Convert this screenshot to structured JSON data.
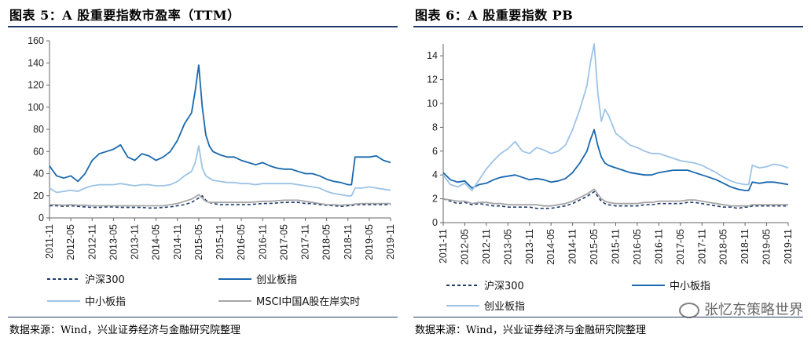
{
  "left": {
    "title": "图表 5：A 股重要指数市盈率（TTM）",
    "source": "数据来源：Wind，兴业证券经济与金融研究院整理",
    "chart_data": {
      "type": "line",
      "title": "图表 5：A 股重要指数市盈率（TTM）",
      "xlabel": "",
      "ylabel": "",
      "ylim": [
        0,
        160
      ],
      "yticks": [
        0,
        20,
        40,
        60,
        80,
        100,
        120,
        140,
        160
      ],
      "xlim": [
        0,
        96
      ],
      "xticks": [
        "2011-11",
        "2012-05",
        "2012-11",
        "2013-05",
        "2013-11",
        "2014-05",
        "2014-11",
        "2015-05",
        "2015-11",
        "2016-05",
        "2016-11",
        "2017-05",
        "2017-11",
        "2018-05",
        "2018-11",
        "2019-05",
        "2019-11"
      ],
      "grid": false,
      "legend": "bottom",
      "x": [
        0,
        2,
        4,
        6,
        8,
        10,
        12,
        14,
        16,
        18,
        20,
        22,
        24,
        26,
        28,
        30,
        32,
        34,
        36,
        38,
        40,
        41,
        42,
        43,
        44,
        45,
        46,
        48,
        50,
        52,
        54,
        56,
        58,
        60,
        62,
        64,
        66,
        68,
        70,
        72,
        74,
        76,
        78,
        80,
        82,
        84,
        85,
        86,
        88,
        90,
        92,
        94,
        96
      ],
      "series": [
        {
          "name": "沪深300",
          "style": "dashed",
          "color": "#1f3a6b",
          "values": [
            11,
            11,
            10.5,
            11,
            10.5,
            10,
            9.5,
            9.5,
            10,
            10,
            9.5,
            9.5,
            9.5,
            9.5,
            9,
            9,
            9.5,
            10,
            11,
            12,
            14,
            16,
            18,
            20,
            16,
            14,
            13,
            12,
            12,
            12,
            12,
            12,
            12.5,
            13,
            13,
            13.5,
            14,
            14,
            14,
            13,
            13,
            12,
            11.5,
            11,
            10.5,
            11,
            11,
            12,
            12,
            12,
            12,
            12,
            12
          ]
        },
        {
          "name": "创业板指",
          "style": "solid",
          "color": "#1a68ad",
          "values": [
            47,
            38,
            36,
            38,
            33,
            40,
            52,
            58,
            60,
            62,
            66,
            55,
            52,
            58,
            56,
            52,
            55,
            60,
            70,
            85,
            95,
            115,
            138,
            100,
            75,
            65,
            60,
            57,
            55,
            55,
            52,
            50,
            48,
            50,
            47,
            45,
            44,
            44,
            42,
            40,
            40,
            38,
            35,
            33,
            32,
            30,
            30,
            55,
            55,
            55,
            56,
            52,
            50
          ]
        },
        {
          "name": "中小板指",
          "style": "solid",
          "color": "#9dc3e6",
          "values": [
            27,
            23,
            24,
            25,
            24,
            27,
            29,
            30,
            30,
            30,
            31,
            30,
            29,
            30,
            30,
            29,
            29,
            30,
            33,
            38,
            42,
            50,
            65,
            45,
            38,
            36,
            34,
            33,
            32,
            32,
            31,
            31,
            30,
            31,
            31,
            31,
            31,
            31,
            30,
            29,
            28,
            27,
            24,
            22,
            21,
            20,
            20,
            27,
            27,
            28,
            27,
            26,
            25
          ]
        },
        {
          "name": "MSCI中国A股在岸实时",
          "style": "solid",
          "color": "#a6a6a6",
          "values": [
            12,
            12,
            11.5,
            12,
            11.5,
            11.5,
            11,
            11,
            11,
            11,
            11,
            11,
            11,
            11,
            11,
            11,
            11,
            12,
            13,
            15,
            17,
            19,
            21,
            18,
            15,
            14,
            14,
            14,
            14,
            14,
            14,
            14,
            14.5,
            15,
            15,
            15.5,
            16,
            16,
            16,
            15,
            14,
            13,
            12,
            12,
            11.5,
            12,
            12,
            12.5,
            13,
            13,
            13,
            13,
            13
          ]
        }
      ]
    }
  },
  "right": {
    "title": "图表 6：A 股重要指数 PB",
    "source": "数据来源：Wind，兴业证券经济与金融研究院整理",
    "chart_data": {
      "type": "line",
      "title": "图表 6：A 股重要指数 PB",
      "xlabel": "",
      "ylabel": "",
      "ylim": [
        0,
        15
      ],
      "yticks": [
        0,
        2,
        4,
        6,
        8,
        10,
        12,
        14
      ],
      "xlim": [
        0,
        96
      ],
      "xticks": [
        "2011-11",
        "2012-05",
        "2012-11",
        "2013-05",
        "2013-11",
        "2014-05",
        "2014-11",
        "2015-05",
        "2015-11",
        "2016-05",
        "2016-11",
        "2017-05",
        "2017-11",
        "2018-05",
        "2018-11",
        "2019-05",
        "2019-11"
      ],
      "grid": false,
      "legend": "bottom",
      "x": [
        0,
        2,
        4,
        6,
        8,
        10,
        12,
        14,
        16,
        18,
        20,
        22,
        24,
        26,
        28,
        30,
        32,
        34,
        36,
        38,
        40,
        41,
        42,
        43,
        44,
        45,
        46,
        48,
        50,
        52,
        54,
        56,
        58,
        60,
        62,
        64,
        66,
        68,
        70,
        72,
        74,
        76,
        78,
        80,
        82,
        84,
        85,
        86,
        88,
        90,
        92,
        94,
        96
      ],
      "series": [
        {
          "name": "沪深300",
          "style": "dashed",
          "color": "#1f3a6b",
          "values": [
            2.0,
            1.8,
            1.6,
            1.7,
            1.5,
            1.6,
            1.5,
            1.4,
            1.4,
            1.3,
            1.3,
            1.3,
            1.3,
            1.2,
            1.2,
            1.2,
            1.3,
            1.4,
            1.6,
            1.9,
            2.2,
            2.4,
            2.6,
            2.2,
            1.8,
            1.6,
            1.5,
            1.4,
            1.4,
            1.4,
            1.4,
            1.5,
            1.5,
            1.6,
            1.6,
            1.6,
            1.6,
            1.7,
            1.7,
            1.6,
            1.5,
            1.4,
            1.3,
            1.3,
            1.2,
            1.3,
            1.3,
            1.4,
            1.4,
            1.4,
            1.4,
            1.4,
            1.4
          ]
        },
        {
          "name": "中小板指",
          "style": "solid",
          "color": "#1a68ad",
          "values": [
            4.2,
            3.6,
            3.4,
            3.5,
            2.9,
            3.2,
            3.3,
            3.6,
            3.8,
            3.9,
            4.0,
            3.8,
            3.6,
            3.7,
            3.6,
            3.4,
            3.5,
            3.7,
            4.2,
            5.0,
            6.0,
            7.0,
            7.8,
            6.5,
            5.5,
            5.0,
            4.8,
            4.6,
            4.4,
            4.2,
            4.1,
            4.0,
            4.0,
            4.2,
            4.3,
            4.4,
            4.4,
            4.4,
            4.2,
            4.0,
            3.8,
            3.6,
            3.3,
            3.0,
            2.8,
            2.7,
            2.7,
            3.4,
            3.3,
            3.4,
            3.4,
            3.3,
            3.2
          ]
        },
        {
          "name": "创业板指",
          "style": "solid",
          "color": "#9dc3e6",
          "values": [
            4.0,
            3.2,
            3.0,
            3.3,
            2.7,
            3.6,
            4.5,
            5.2,
            5.8,
            6.2,
            6.8,
            6.0,
            5.8,
            6.3,
            6.1,
            5.8,
            6.0,
            6.5,
            7.8,
            9.5,
            11.5,
            13.5,
            15.0,
            11.0,
            8.5,
            9.5,
            9.0,
            7.5,
            7.0,
            6.5,
            6.3,
            6.0,
            5.8,
            5.8,
            5.6,
            5.4,
            5.2,
            5.1,
            5.0,
            4.8,
            4.5,
            4.2,
            3.8,
            3.5,
            3.3,
            3.2,
            3.2,
            4.8,
            4.6,
            4.7,
            4.9,
            4.8,
            4.6
          ]
        },
        {
          "name": "MSCI中国A股在岸实时",
          "style": "solid",
          "color": "#a6a6a6",
          "values": [
            2.0,
            1.9,
            1.8,
            1.8,
            1.6,
            1.7,
            1.7,
            1.6,
            1.6,
            1.5,
            1.5,
            1.5,
            1.5,
            1.5,
            1.4,
            1.4,
            1.5,
            1.6,
            1.8,
            2.1,
            2.4,
            2.6,
            2.8,
            2.4,
            2.0,
            1.8,
            1.7,
            1.6,
            1.6,
            1.6,
            1.6,
            1.7,
            1.7,
            1.8,
            1.8,
            1.8,
            1.8,
            1.9,
            1.9,
            1.8,
            1.7,
            1.6,
            1.5,
            1.4,
            1.4,
            1.4,
            1.4,
            1.5,
            1.5,
            1.5,
            1.5,
            1.5,
            1.5
          ]
        }
      ],
      "legend_entries": [
        "沪深300",
        "中小板指",
        "创业板指"
      ]
    }
  },
  "watermark": {
    "text": "张忆东策略世界",
    "icon": "wechat-channel-icon"
  }
}
